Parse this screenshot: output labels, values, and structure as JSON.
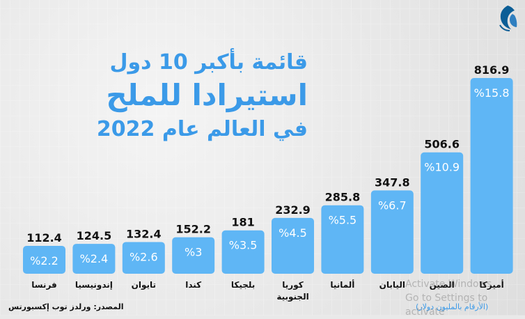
{
  "title": {
    "line1": "قائمة بأكبر 10 دول",
    "line2": "استيرادا للملح",
    "line3": "في العالم عام 2022"
  },
  "source": "المصدر: ورلدز توب إكسبورتس",
  "unit_note": "(الأرقام بالمليون دولار)",
  "watermark": {
    "line1": "Activate Windows",
    "line2": "Go to Settings to activate"
  },
  "colors": {
    "bar": "#5fb6f5",
    "title": "#3b9ae8",
    "background": "#e9e9e9",
    "value_text": "#111111",
    "pct_text": "#ffffff"
  },
  "icons": {
    "logo": "al-jazeera-logo-icon"
  },
  "chart_data": {
    "type": "bar",
    "categories": [
      "فرنسا",
      "إندونيسيا",
      "تايوان",
      "كندا",
      "بلجيكا",
      "كوريا الجنوبية",
      "ألمانيا",
      "اليابان",
      "الصين",
      "أميركا"
    ],
    "values": [
      112.4,
      124.5,
      132.4,
      152.2,
      181,
      232.9,
      285.8,
      347.8,
      506.6,
      816.9
    ],
    "value_labels": [
      "112.4",
      "124.5",
      "132.4",
      "152.2",
      "181",
      "232.9",
      "285.8",
      "347.8",
      "506.6",
      "816.9"
    ],
    "share_labels": [
      "%2.2",
      "%2.4",
      "%2.6",
      "%3",
      "%3.5",
      "%4.5",
      "%5.5",
      "%6.7",
      "%10.9",
      "%15.8"
    ],
    "title": "قائمة بأكبر 10 دول استيرادا للملح في العالم عام 2022",
    "xlabel": "",
    "ylabel": "",
    "grid": false,
    "legend": "none"
  }
}
